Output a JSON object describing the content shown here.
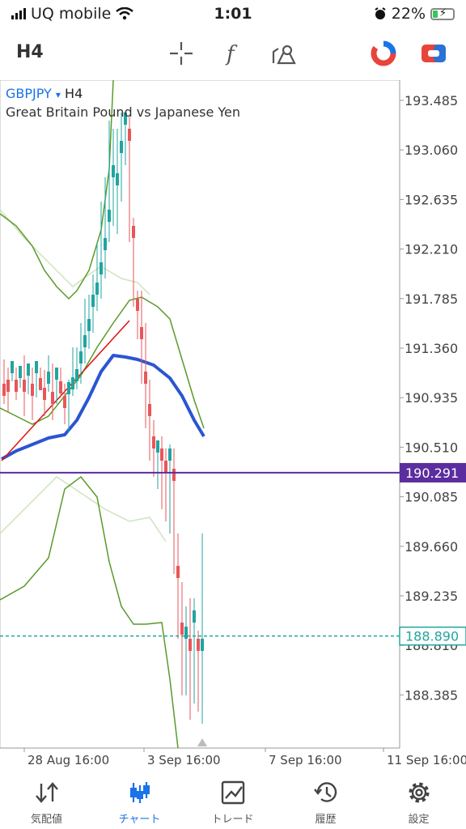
{
  "status_bar": {
    "carrier": "UQ mobile",
    "time": "1:01",
    "battery": "22%"
  },
  "toolbar": {
    "timeframe": "H4"
  },
  "chart_header": {
    "symbol": "GBPJPY",
    "dropdown": "▾",
    "timeframe": "H4",
    "description": "Great Britain Pound vs Japanese Yen"
  },
  "chart_data": {
    "type": "candlestick",
    "price_axis": [
      "193.485",
      "193.060",
      "192.635",
      "192.210",
      "191.785",
      "191.360",
      "190.935",
      "190.510",
      "190.085",
      "189.660",
      "189.235",
      "188.810",
      "188.385"
    ],
    "time_axis": [
      "28 Aug 16:00",
      "3 Sep 16:00",
      "7 Sep 16:00",
      "11 Sep 16:00"
    ],
    "horizontal_line": {
      "price": "190.291",
      "color": "#5b2d9e"
    },
    "bid_line": {
      "price": "188.890",
      "color": "#20a5a0"
    },
    "colors": {
      "up": "#20a5a0",
      "down": "#e8565a",
      "moving_average": "#2a55d3",
      "bands": "#5a9a2a",
      "outer_bands": "#cfe3c0",
      "trendline": "#dd1111"
    }
  },
  "tab_bar": {
    "tabs": [
      {
        "label": "気配値",
        "icon": "quotes-icon"
      },
      {
        "label": "チャート",
        "icon": "chart-icon"
      },
      {
        "label": "トレード",
        "icon": "trade-icon"
      },
      {
        "label": "履歴",
        "icon": "history-icon"
      },
      {
        "label": "設定",
        "icon": "settings-icon"
      }
    ]
  }
}
